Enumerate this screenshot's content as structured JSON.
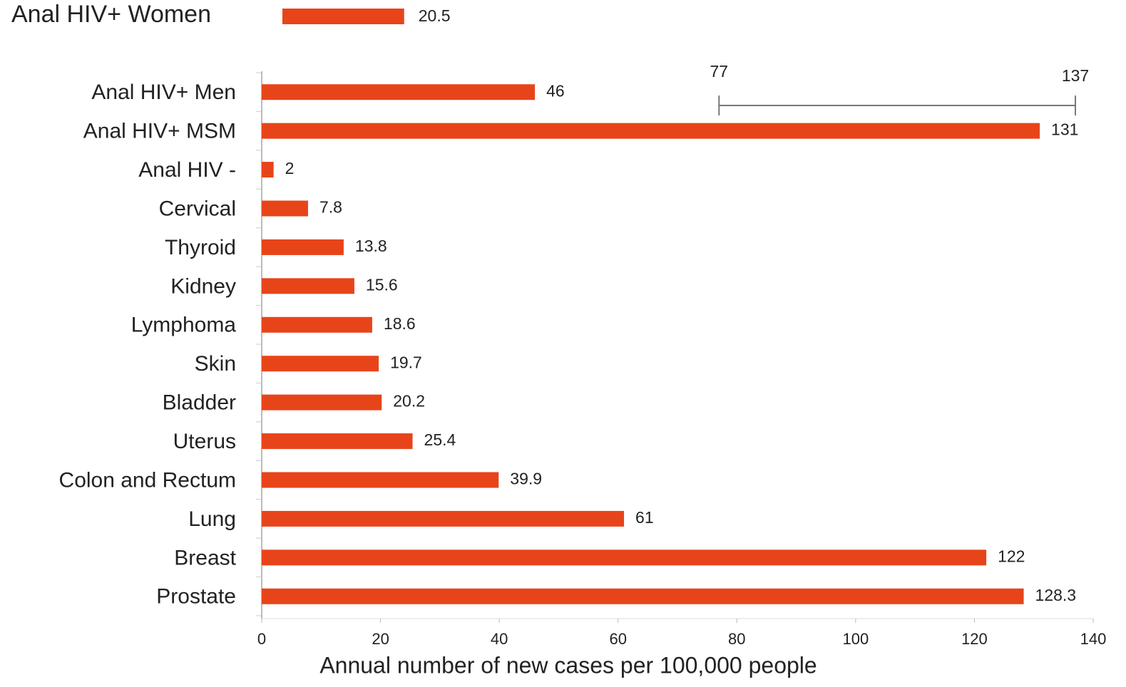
{
  "chart_data": {
    "type": "bar",
    "orientation": "horizontal",
    "highlight": {
      "category": "Anal HIV+ Women",
      "value": 20.5
    },
    "categories": [
      "Anal HIV+ Men",
      "Anal HIV+ MSM",
      "Anal HIV -",
      "Cervical",
      "Thyroid",
      "Kidney",
      "Lymphoma",
      "Skin",
      "Bladder",
      "Uterus",
      "Colon and Rectum",
      "Lung",
      "Breast",
      "Prostate"
    ],
    "values": [
      46,
      131,
      2,
      7.8,
      13.8,
      15.6,
      18.6,
      19.7,
      20.2,
      25.4,
      39.9,
      61,
      122,
      128.3
    ],
    "color": "#e8441a",
    "range": [
      77,
      137
    ],
    "xlabel": "Annual number of new cases per 100,000 people",
    "xlim": [
      0,
      140
    ],
    "xticks": [
      0,
      20,
      40,
      60,
      80,
      100,
      120,
      140
    ],
    "grid": false
  }
}
